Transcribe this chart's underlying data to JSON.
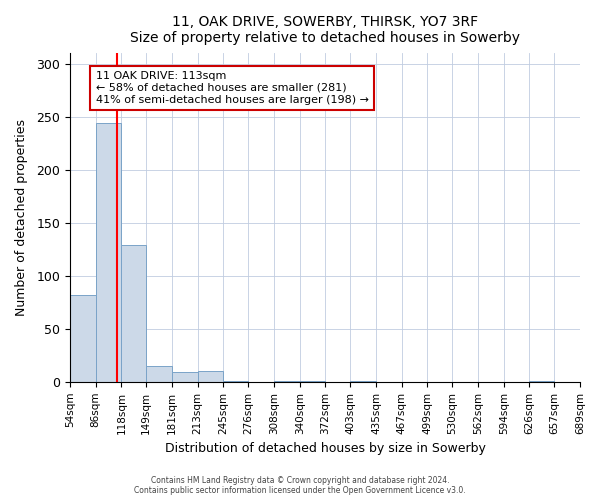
{
  "title": "11, OAK DRIVE, SOWERBY, THIRSK, YO7 3RF",
  "subtitle": "Size of property relative to detached houses in Sowerby",
  "xlabel": "Distribution of detached houses by size in Sowerby",
  "ylabel": "Number of detached properties",
  "bin_labels": [
    "54sqm",
    "86sqm",
    "118sqm",
    "149sqm",
    "181sqm",
    "213sqm",
    "245sqm",
    "276sqm",
    "308sqm",
    "340sqm",
    "372sqm",
    "403sqm",
    "435sqm",
    "467sqm",
    "499sqm",
    "530sqm",
    "562sqm",
    "594sqm",
    "626sqm",
    "657sqm",
    "689sqm"
  ],
  "bar_values": [
    82,
    244,
    129,
    15,
    9,
    10,
    1,
    0,
    1,
    1,
    0,
    1,
    0,
    0,
    0,
    0,
    0,
    0,
    1,
    0
  ],
  "bar_color": "#ccd9e8",
  "bar_edge_color": "#7aa3c8",
  "red_line_x": 113,
  "bin_edges_numeric": [
    54,
    86,
    118,
    149,
    181,
    213,
    245,
    276,
    308,
    340,
    372,
    403,
    435,
    467,
    499,
    530,
    562,
    594,
    626,
    657,
    689
  ],
  "annotation_text": "11 OAK DRIVE: 113sqm\n← 58% of detached houses are smaller (281)\n41% of semi-detached houses are larger (198) →",
  "annotation_box_color": "#ffffff",
  "annotation_box_edge_color": "#cc0000",
  "ylim": [
    0,
    310
  ],
  "yticks": [
    0,
    50,
    100,
    150,
    200,
    250,
    300
  ],
  "footer_line1": "Contains HM Land Registry data © Crown copyright and database right 2024.",
  "footer_line2": "Contains public sector information licensed under the Open Government Licence v3.0."
}
